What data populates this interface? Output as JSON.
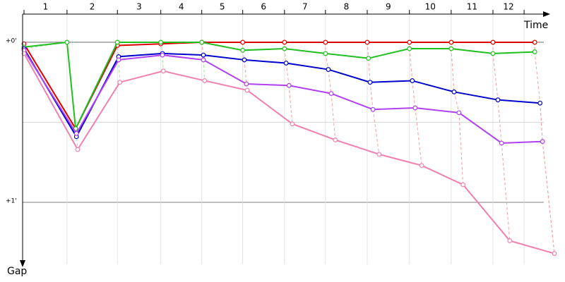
{
  "chart_data": {
    "type": "line",
    "x_label": "Time",
    "y_label": "Gap",
    "xlim": [
      0,
      12.95
    ],
    "ylim": [
      -0.18,
      1.39
    ],
    "lap_boundaries": [
      0,
      1.05,
      2.28,
      3.34,
      4.34,
      5.34,
      6.36,
      7.36,
      8.38,
      9.41,
      10.43,
      11.45,
      12.21
    ],
    "lap_labels": [
      "1",
      "2",
      "3",
      "4",
      "5",
      "6",
      "7",
      "8",
      "9",
      "10",
      "11",
      "12"
    ],
    "yticks": [
      {
        "value": 0,
        "label": "+0'"
      },
      {
        "value": 1,
        "label": "+1'"
      }
    ],
    "minor_gridlines": [
      0.5
    ],
    "series": [
      {
        "color": "#e00000",
        "x": [
          0,
          1.26,
          2.28,
          3.34,
          4.34,
          5.34,
          6.36,
          7.36,
          8.38,
          9.41,
          10.43,
          11.45,
          12.47
        ],
        "values": [
          0.01,
          0.54,
          0.02,
          0.01,
          0,
          0,
          0,
          0,
          0,
          0,
          0,
          0,
          0
        ]
      },
      {
        "color": "#20c020",
        "x": [
          0,
          1.05,
          1.26,
          2.28,
          3.34,
          4.34,
          5.34,
          6.36,
          7.36,
          8.41,
          9.41,
          10.43,
          11.45,
          12.47
        ],
        "values": [
          0.03,
          0,
          0.54,
          0,
          0,
          0,
          0.05,
          0.04,
          0.07,
          0.1,
          0.04,
          0.04,
          0.07,
          0.06
        ]
      },
      {
        "color": "#0000cc",
        "x": [
          0,
          1.28,
          2.31,
          3.38,
          4.38,
          5.38,
          6.4,
          7.43,
          8.45,
          9.48,
          10.5,
          11.57,
          12.6
        ],
        "values": [
          0.04,
          0.59,
          0.09,
          0.07,
          0.08,
          0.11,
          0.13,
          0.17,
          0.25,
          0.24,
          0.31,
          0.36,
          0.38
        ]
      },
      {
        "color": "#b040f0",
        "x": [
          0,
          1.28,
          2.31,
          3.38,
          4.38,
          5.43,
          6.47,
          7.5,
          8.52,
          9.55,
          10.62,
          11.66,
          12.66
        ],
        "values": [
          0.05,
          0.57,
          0.11,
          0.08,
          0.11,
          0.26,
          0.27,
          0.32,
          0.42,
          0.41,
          0.44,
          0.63,
          0.62
        ]
      },
      {
        "color": "#f080b0",
        "x": [
          0,
          1.31,
          2.34,
          3.4,
          4.41,
          5.45,
          6.55,
          7.6,
          8.67,
          9.71,
          10.72,
          11.86,
          12.95
        ],
        "values": [
          0.07,
          0.67,
          0.25,
          0.18,
          0.24,
          0.3,
          0.51,
          0.61,
          0.7,
          0.77,
          0.89,
          1.24,
          1.32
        ]
      }
    ]
  }
}
